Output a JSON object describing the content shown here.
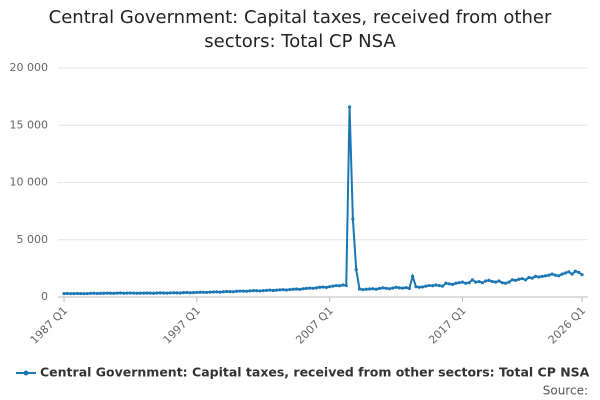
{
  "chart_data": {
    "type": "line",
    "title": "Central Government: Capital taxes, received from other sectors: Total CP NSA",
    "source": "Source:",
    "categories": [
      "1987 Q1",
      null,
      null,
      null,
      null,
      null,
      null,
      null,
      null,
      null,
      null,
      null,
      null,
      null,
      null,
      null,
      null,
      null,
      null,
      null,
      null,
      null,
      null,
      null,
      null,
      null,
      null,
      null,
      null,
      null,
      null,
      null,
      null,
      null,
      null,
      null,
      null,
      null,
      null,
      null,
      "1997 Q1",
      null,
      null,
      null,
      null,
      null,
      null,
      null,
      null,
      null,
      null,
      null,
      null,
      null,
      null,
      null,
      null,
      null,
      null,
      null,
      null,
      null,
      null,
      null,
      null,
      null,
      null,
      null,
      null,
      null,
      null,
      null,
      null,
      null,
      null,
      null,
      null,
      null,
      null,
      null,
      "2007 Q1",
      null,
      null,
      null,
      null,
      null,
      null,
      null,
      null,
      null,
      null,
      null,
      null,
      null,
      null,
      null,
      null,
      null,
      null,
      null,
      null,
      null,
      null,
      null,
      null,
      null,
      null,
      null,
      null,
      null,
      null,
      null,
      null,
      null,
      null,
      null,
      null,
      null,
      null,
      null,
      "2017 Q1",
      null,
      null,
      null,
      null,
      null,
      null,
      null,
      null,
      null,
      null,
      null,
      null,
      null,
      null,
      null,
      null,
      null,
      null,
      null,
      null,
      null,
      null,
      null,
      null,
      null,
      null,
      null,
      null,
      null,
      null,
      null,
      null,
      null,
      null,
      null,
      "2026 Q1"
    ],
    "series": [
      {
        "name": "Central Government: Capital taxes, received from other sectors: Total CP NSA",
        "color": "#1b77b4",
        "values": [
          300,
          310,
          290,
          300,
          310,
          300,
          290,
          300,
          320,
          330,
          310,
          320,
          330,
          340,
          330,
          320,
          340,
          350,
          330,
          340,
          350,
          340,
          330,
          340,
          340,
          350,
          340,
          330,
          350,
          360,
          350,
          340,
          360,
          370,
          360,
          350,
          380,
          390,
          370,
          380,
          400,
          420,
          410,
          400,
          430,
          440,
          450,
          430,
          460,
          480,
          470,
          460,
          500,
          520,
          510,
          500,
          540,
          560,
          550,
          530,
          560,
          580,
          600,
          570,
          600,
          620,
          640,
          610,
          650,
          680,
          700,
          670,
          720,
          750,
          780,
          760,
          800,
          850,
          870,
          840,
          900,
          950,
          1000,
          980,
          1050,
          1000,
          16600,
          6800,
          2400,
          700,
          650,
          680,
          700,
          720,
          680,
          750,
          800,
          760,
          720,
          780,
          850,
          800,
          780,
          820,
          750,
          1800,
          900,
          850,
          880,
          950,
          1000,
          980,
          1050,
          1000,
          950,
          1200,
          1150,
          1100,
          1200,
          1250,
          1300,
          1200,
          1250,
          1500,
          1300,
          1350,
          1250,
          1400,
          1450,
          1350,
          1300,
          1400,
          1250,
          1200,
          1300,
          1500,
          1450,
          1550,
          1600,
          1500,
          1700,
          1650,
          1800,
          1750,
          1800,
          1850,
          1900,
          2000,
          1900,
          1850,
          2000,
          2100,
          2200,
          2000,
          2250,
          2150,
          1950
        ]
      }
    ],
    "ylim": [
      0,
      20000
    ],
    "yticks": [
      0,
      {
        "value": 5000,
        "label": "5 000"
      },
      {
        "value": 10000,
        "label": "10 000"
      },
      {
        "value": 15000,
        "label": "15 000"
      },
      {
        "value": 20000,
        "label": "20 000"
      }
    ],
    "grid": true
  }
}
